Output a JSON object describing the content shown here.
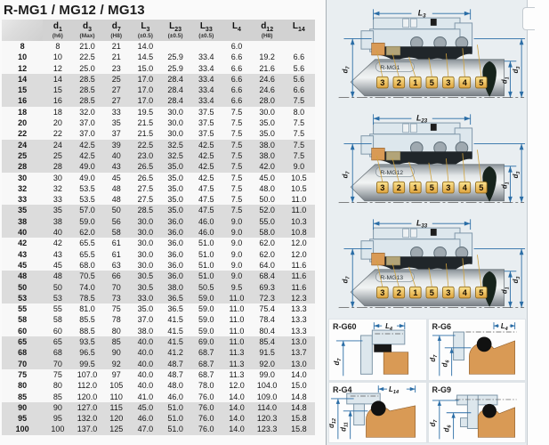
{
  "title": "R-MG1 / MG12 / MG13",
  "table": {
    "headers": [
      {
        "b": "",
        "s": "",
        "tol": ""
      },
      {
        "b": "d",
        "s": "1",
        "tol": "(h6)"
      },
      {
        "b": "d",
        "s": "3",
        "tol": "(Max)"
      },
      {
        "b": "d",
        "s": "7",
        "tol": "(H8)"
      },
      {
        "b": "L",
        "s": "3",
        "tol": "(±0.5)"
      },
      {
        "b": "L",
        "s": "23",
        "tol": "(±0.5)"
      },
      {
        "b": "L",
        "s": "33",
        "tol": "(±0.5)"
      },
      {
        "b": "L",
        "s": "4",
        "tol": ""
      },
      {
        "b": "d",
        "s": "12",
        "tol": "(H8)"
      },
      {
        "b": "L",
        "s": "14",
        "tol": ""
      }
    ],
    "rows": [
      [
        "8",
        "8",
        "21.0",
        "21",
        "14.0",
        "",
        "",
        "6.0",
        "",
        ""
      ],
      [
        "10",
        "10",
        "22.5",
        "21",
        "14.5",
        "25.9",
        "33.4",
        "6.6",
        "19.2",
        "6.6"
      ],
      [
        "12",
        "12",
        "25.0",
        "23",
        "15.0",
        "25.9",
        "33.4",
        "6.6",
        "21.6",
        "5.6"
      ],
      [
        "14",
        "14",
        "28.5",
        "25",
        "17.0",
        "28.4",
        "33.4",
        "6.6",
        "24.6",
        "5.6"
      ],
      [
        "15",
        "15",
        "28.5",
        "27",
        "17.0",
        "28.4",
        "33.4",
        "6.6",
        "24.6",
        "6.6"
      ],
      [
        "16",
        "16",
        "28.5",
        "27",
        "17.0",
        "28.4",
        "33.4",
        "6.6",
        "28.0",
        "7.5"
      ],
      [
        "18",
        "18",
        "32.0",
        "33",
        "19.5",
        "30.0",
        "37.5",
        "7.5",
        "30.0",
        "8.0"
      ],
      [
        "20",
        "20",
        "37.0",
        "35",
        "21.5",
        "30.0",
        "37.5",
        "7.5",
        "35.0",
        "7.5"
      ],
      [
        "22",
        "22",
        "37.0",
        "37",
        "21.5",
        "30.0",
        "37.5",
        "7.5",
        "35.0",
        "7.5"
      ],
      [
        "24",
        "24",
        "42.5",
        "39",
        "22.5",
        "32.5",
        "42.5",
        "7.5",
        "38.0",
        "7.5"
      ],
      [
        "25",
        "25",
        "42.5",
        "40",
        "23.0",
        "32.5",
        "42.5",
        "7.5",
        "38.0",
        "7.5"
      ],
      [
        "28",
        "28",
        "49.0",
        "43",
        "26.5",
        "35.0",
        "42.5",
        "7.5",
        "42.0",
        "9.0"
      ],
      [
        "30",
        "30",
        "49.0",
        "45",
        "26.5",
        "35.0",
        "42.5",
        "7.5",
        "45.0",
        "10.5"
      ],
      [
        "32",
        "32",
        "53.5",
        "48",
        "27.5",
        "35.0",
        "47.5",
        "7.5",
        "48.0",
        "10.5"
      ],
      [
        "33",
        "33",
        "53.5",
        "48",
        "27.5",
        "35.0",
        "47.5",
        "7.5",
        "50.0",
        "11.0"
      ],
      [
        "35",
        "35",
        "57.0",
        "50",
        "28.5",
        "35.0",
        "47.5",
        "7.5",
        "52.0",
        "11.0"
      ],
      [
        "38",
        "38",
        "59.0",
        "56",
        "30.0",
        "36.0",
        "46.0",
        "9.0",
        "55.0",
        "10.3"
      ],
      [
        "40",
        "40",
        "62.0",
        "58",
        "30.0",
        "36.0",
        "46.0",
        "9.0",
        "58.0",
        "10.8"
      ],
      [
        "42",
        "42",
        "65.5",
        "61",
        "30.0",
        "36.0",
        "51.0",
        "9.0",
        "62.0",
        "12.0"
      ],
      [
        "43",
        "43",
        "65.5",
        "61",
        "30.0",
        "36.0",
        "51.0",
        "9.0",
        "62.0",
        "12.0"
      ],
      [
        "45",
        "45",
        "68.0",
        "63",
        "30.0",
        "36.0",
        "51.0",
        "9.0",
        "64.0",
        "11.6"
      ],
      [
        "48",
        "48",
        "70.5",
        "66",
        "30.5",
        "36.0",
        "51.0",
        "9.0",
        "68.4",
        "11.6"
      ],
      [
        "50",
        "50",
        "74.0",
        "70",
        "30.5",
        "38.0",
        "50.5",
        "9.5",
        "69.3",
        "11.6"
      ],
      [
        "53",
        "53",
        "78.5",
        "73",
        "33.0",
        "36.5",
        "59.0",
        "11.0",
        "72.3",
        "12.3"
      ],
      [
        "55",
        "55",
        "81.0",
        "75",
        "35.0",
        "36.5",
        "59.0",
        "11.0",
        "75.4",
        "13.3"
      ],
      [
        "58",
        "58",
        "85.5",
        "78",
        "37.0",
        "41.5",
        "59.0",
        "11.0",
        "78.4",
        "13.3"
      ],
      [
        "60",
        "60",
        "88.5",
        "80",
        "38.0",
        "41.5",
        "59.0",
        "11.0",
        "80.4",
        "13.3"
      ],
      [
        "65",
        "65",
        "93.5",
        "85",
        "40.0",
        "41.5",
        "69.0",
        "11.0",
        "85.4",
        "13.0"
      ],
      [
        "68",
        "68",
        "96.5",
        "90",
        "40.0",
        "41.2",
        "68.7",
        "11.3",
        "91.5",
        "13.7"
      ],
      [
        "70",
        "70",
        "99.5",
        "92",
        "40.0",
        "48.7",
        "68.7",
        "11.3",
        "92.0",
        "13.0"
      ],
      [
        "75",
        "75",
        "107.0",
        "97",
        "40.0",
        "48.7",
        "68.7",
        "11.3",
        "99.0",
        "14.0"
      ],
      [
        "80",
        "80",
        "112.0",
        "105",
        "40.0",
        "48.0",
        "78.0",
        "12.0",
        "104.0",
        "15.0"
      ],
      [
        "85",
        "85",
        "120.0",
        "110",
        "41.0",
        "46.0",
        "76.0",
        "14.0",
        "109.0",
        "14.8"
      ],
      [
        "90",
        "90",
        "127.0",
        "115",
        "45.0",
        "51.0",
        "76.0",
        "14.0",
        "114.0",
        "14.8"
      ],
      [
        "95",
        "95",
        "132.0",
        "120",
        "46.0",
        "51.0",
        "76.0",
        "14.0",
        "120.3",
        "15.8"
      ],
      [
        "100",
        "100",
        "137.0",
        "125",
        "47.0",
        "51.0",
        "76.0",
        "14.0",
        "123.3",
        "15.8"
      ]
    ]
  },
  "diagrams": [
    {
      "name": "R-MG1",
      "dim_top": {
        "b": "L",
        "s": "3"
      },
      "dim_left": {
        "b": "d",
        "s": "7"
      },
      "dim_right_inner": {
        "b": "d",
        "s": "1"
      },
      "dim_right_outer": {
        "b": "d",
        "s": "3"
      },
      "tags": [
        "3",
        "2",
        "1",
        "5",
        "3",
        "4",
        "5"
      ]
    },
    {
      "name": "R-MG12",
      "dim_top": {
        "b": "L",
        "s": "23"
      },
      "dim_left": {
        "b": "d",
        "s": "7"
      },
      "dim_right_inner": {
        "b": "d",
        "s": "1"
      },
      "dim_right_outer": {
        "b": "d",
        "s": "3"
      },
      "tags": [
        "3",
        "2",
        "1",
        "5",
        "3",
        "4",
        "5"
      ]
    },
    {
      "name": "R-MG13",
      "dim_top": {
        "b": "L",
        "s": "33"
      },
      "dim_left": {
        "b": "d",
        "s": "7"
      },
      "dim_right_inner": {
        "b": "d",
        "s": "1"
      },
      "dim_right_outer": {
        "b": "d",
        "s": "3"
      },
      "tags": [
        "3",
        "2",
        "1",
        "5",
        "3",
        "4",
        "5"
      ]
    }
  ],
  "details": [
    {
      "name": "R-G60",
      "dim_top": {
        "b": "L",
        "s": "4"
      },
      "dim_outer": {
        "b": "d",
        "s": "7"
      }
    },
    {
      "name": "R-G6",
      "dim_top": {
        "b": "L",
        "s": "4"
      },
      "dim_outer": {
        "b": "d",
        "s": "7"
      },
      "dim_inner": {
        "b": "d",
        "s": "6"
      }
    },
    {
      "name": "R-G4",
      "dim_top": {
        "b": "L",
        "s": "14"
      },
      "dim_outer": {
        "b": "d",
        "s": "12"
      },
      "dim_inner": {
        "b": "d",
        "s": "11"
      }
    },
    {
      "name": "R-G9",
      "dim_outer": {
        "b": "d",
        "s": "7"
      },
      "dim_inner": {
        "b": "d",
        "s": "6"
      }
    }
  ],
  "colors": {
    "header_gray": "#d2d2d2",
    "stripe_gray": "#dcdcdc",
    "dimension_blue": "#2a6da6",
    "steel_fill": "#dde7ed",
    "steel_stroke": "#7e96a8",
    "orange_seat": "#d99a55",
    "olive_part": "#b2a478",
    "tag_yellow": "#eec253",
    "dark_rubber": "#20262a",
    "shaft_dark": "#17241c"
  }
}
